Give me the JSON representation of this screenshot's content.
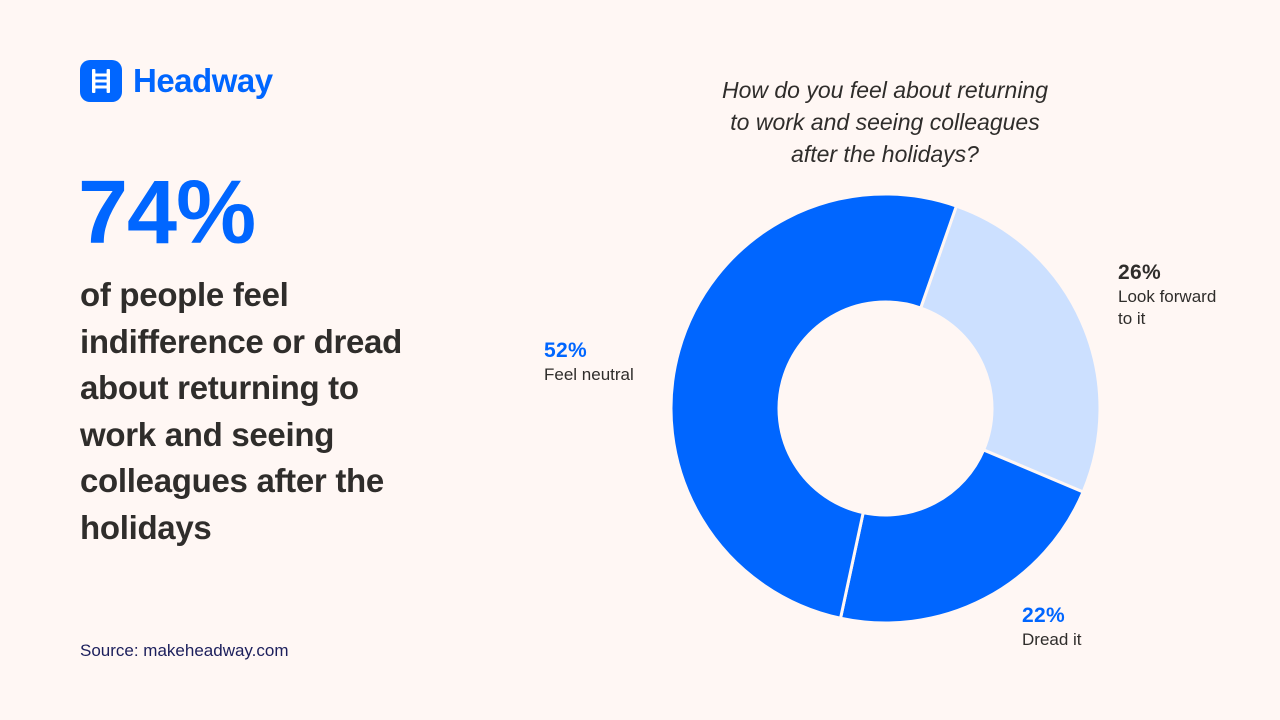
{
  "brand": {
    "name": "Headway",
    "icon": "ladder-icon",
    "color": "#0066FF"
  },
  "stat": {
    "value": "74%",
    "headline_lines": [
      "of people feel",
      "indifference or dread",
      "about returning to",
      "work and seeing",
      "colleagues after the",
      "holidays"
    ]
  },
  "source": "Source: makeheadway.com",
  "colors": {
    "background": "#FFF7F4",
    "primary_blue": "#0066FF",
    "light_blue": "#CCE0FF",
    "text_dark": "#2F2D2B",
    "source_text": "#1C1F5C"
  },
  "chart_data": {
    "type": "pie",
    "subtype": "donut",
    "title": "How do you feel about returning to work and seeing colleagues after the holidays?",
    "title_lines": [
      "How do you feel about returning",
      "to work and seeing colleagues",
      "after the holidays?"
    ],
    "categories": [
      "Look forward to it",
      "Dread it",
      "Feel neutral"
    ],
    "values": [
      26,
      22,
      52
    ],
    "unit": "%",
    "start_angle_deg": 19.3,
    "center": [
      885.5,
      408.5
    ],
    "outer_radius": 214.5,
    "inner_radius": 106.5,
    "slices": [
      {
        "label": "Look forward to it",
        "label_lines": [
          "Look forward",
          "to it"
        ],
        "value": 26,
        "pct_label": "26%",
        "color": "#CCE0FF",
        "pct_color": "#2F2D2B",
        "label_pos": [
          1118,
          260
        ]
      },
      {
        "label": "Dread it",
        "label_lines": [
          "Dread it"
        ],
        "value": 22,
        "pct_label": "22%",
        "color": "#0066FF",
        "pct_color": "#0066FF",
        "label_pos": [
          1022,
          603
        ]
      },
      {
        "label": "Feel neutral",
        "label_lines": [
          "Feel neutral"
        ],
        "value": 52,
        "pct_label": "52%",
        "color": "#0066FF",
        "pct_color": "#0066FF",
        "label_pos": [
          544,
          338
        ]
      }
    ],
    "legend": "none (direct labels)",
    "grid": false
  }
}
